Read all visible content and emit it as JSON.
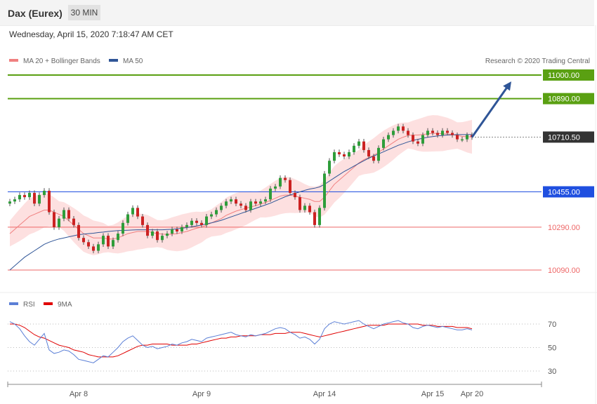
{
  "header": {
    "instrument": "Dax (Eurex)",
    "timeframe": "30 MIN",
    "timestamp": "Wednesday, April 15, 2020 7:18:47 AM CET"
  },
  "legend": {
    "main": [
      {
        "label": "MA 20 + Bollinger Bands",
        "color": "#f08080"
      },
      {
        "label": "MA 50",
        "color": "#2f5597"
      }
    ],
    "credit": "Research © 2020 Trading Central",
    "rsi": [
      {
        "label": "RSI",
        "color": "#5b7fd6"
      },
      {
        "label": "9MA",
        "color": "#e00000"
      }
    ]
  },
  "colors": {
    "resistance": "#5aa012",
    "pivot": "#1f4fe0",
    "support": "#ee6666",
    "current": "#333333",
    "arrow": "#2f5597",
    "candle_up": "#2e9d3a",
    "candle_down": "#cc2222",
    "band": "#fde0e0"
  },
  "chart_data": {
    "type": "candlestick",
    "price_range": [
      10030,
      11040
    ],
    "levels": [
      {
        "value": 11000,
        "label": "11000.00",
        "kind": "resistance"
      },
      {
        "value": 10890,
        "label": "10890.00",
        "kind": "resistance"
      },
      {
        "value": 10710.5,
        "label": "10710.50",
        "kind": "current"
      },
      {
        "value": 10455,
        "label": "10455.00",
        "kind": "pivot"
      },
      {
        "value": 10290,
        "label": "10290.00",
        "kind": "support"
      },
      {
        "value": 10090,
        "label": "10090.00",
        "kind": "support"
      }
    ],
    "x_labels": [
      "Apr 8",
      "Apr 9",
      "Apr 14",
      "Apr 15",
      "Apr 20"
    ],
    "x_label_index": [
      14,
      39,
      64,
      86,
      94
    ],
    "target": {
      "from_index": 94,
      "from_price": 10710,
      "to_index": 102,
      "to_price": 10970
    },
    "close": [
      10410,
      10420,
      10440,
      10430,
      10450,
      10400,
      10440,
      10460,
      10360,
      10290,
      10330,
      10370,
      10330,
      10300,
      10240,
      10220,
      10200,
      10180,
      10210,
      10250,
      10200,
      10230,
      10260,
      10310,
      10350,
      10380,
      10340,
      10300,
      10250,
      10270,
      10230,
      10250,
      10260,
      10280,
      10270,
      10290,
      10300,
      10320,
      10310,
      10300,
      10340,
      10350,
      10370,
      10390,
      10410,
      10420,
      10400,
      10390,
      10370,
      10410,
      10400,
      10410,
      10420,
      10470,
      10480,
      10520,
      10510,
      10450,
      10430,
      10370,
      10390,
      10360,
      10300,
      10380,
      10540,
      10600,
      10640,
      10630,
      10620,
      10640,
      10670,
      10690,
      10650,
      10620,
      10600,
      10660,
      10700,
      10720,
      10740,
      10760,
      10740,
      10720,
      10690,
      10680,
      10720,
      10740,
      10730,
      10720,
      10740,
      10730,
      10720,
      10700,
      10700,
      10720,
      10710
    ],
    "ma20": [
      10260,
      10280,
      10300,
      10320,
      10340,
      10350,
      10360,
      10370,
      10370,
      10360,
      10350,
      10340,
      10320,
      10300,
      10280,
      10260,
      10250,
      10240,
      10240,
      10240,
      10235,
      10235,
      10240,
      10250,
      10260,
      10265,
      10270,
      10270,
      10270,
      10265,
      10260,
      10258,
      10256,
      10258,
      10260,
      10265,
      10270,
      10278,
      10285,
      10290,
      10300,
      10310,
      10320,
      10330,
      10345,
      10355,
      10365,
      10372,
      10378,
      10385,
      10390,
      10398,
      10405,
      10415,
      10425,
      10435,
      10440,
      10440,
      10435,
      10430,
      10425,
      10420,
      10410,
      10410,
      10430,
      10460,
      10490,
      10510,
      10530,
      10550,
      10570,
      10590,
      10605,
      10615,
      10625,
      10640,
      10655,
      10670,
      10685,
      10700,
      10710,
      10718,
      10720,
      10720,
      10722,
      10726,
      10728,
      10728,
      10726,
      10725,
      10722,
      10718,
      10714,
      10712,
      10712
    ],
    "ma50": [
      10090,
      10110,
      10130,
      10150,
      10165,
      10180,
      10195,
      10210,
      10220,
      10228,
      10235,
      10240,
      10245,
      10250,
      10255,
      10258,
      10260,
      10262,
      10265,
      10267,
      10270,
      10272,
      10274,
      10275,
      10276,
      10277,
      10278,
      10278,
      10278,
      10278,
      10278,
      10278,
      10279,
      10280,
      10282,
      10285,
      10288,
      10292,
      10296,
      10300,
      10305,
      10310,
      10316,
      10322,
      10330,
      10338,
      10346,
      10354,
      10362,
      10370,
      10378,
      10386,
      10394,
      10402,
      10412,
      10422,
      10432,
      10440,
      10448,
      10455,
      10462,
      10468,
      10472,
      10478,
      10490,
      10505,
      10520,
      10535,
      10550,
      10562,
      10575,
      10588,
      10600,
      10612,
      10622,
      10632,
      10642,
      10652,
      10662,
      10672,
      10680,
      10688,
      10695,
      10700,
      10705,
      10710,
      10713,
      10716,
      10718,
      10720,
      10721,
      10722,
      10722,
      10722,
      10722
    ],
    "rsi": [
      72,
      70,
      66,
      60,
      55,
      52,
      57,
      62,
      48,
      45,
      46,
      48,
      47,
      44,
      40,
      39,
      38,
      37,
      40,
      43,
      42,
      46,
      50,
      55,
      58,
      60,
      56,
      52,
      50,
      51,
      49,
      50,
      51,
      53,
      52,
      54,
      55,
      57,
      56,
      55,
      58,
      59,
      60,
      61,
      62,
      63,
      61,
      60,
      59,
      61,
      60,
      61,
      62,
      64,
      66,
      67,
      66,
      63,
      61,
      58,
      59,
      57,
      53,
      57,
      66,
      70,
      72,
      71,
      70,
      71,
      72,
      73,
      70,
      68,
      66,
      68,
      70,
      71,
      72,
      73,
      71,
      70,
      67,
      66,
      68,
      69,
      68,
      67,
      68,
      67,
      66,
      65,
      65,
      66,
      65
    ],
    "rsi_ma": [
      70,
      70,
      69,
      67,
      64,
      61,
      59,
      58,
      56,
      54,
      52,
      51,
      50,
      48,
      47,
      46,
      44,
      43,
      42,
      42,
      42,
      42,
      43,
      45,
      47,
      49,
      51,
      52,
      52,
      53,
      53,
      53,
      53,
      52,
      52,
      52,
      52,
      53,
      53,
      54,
      55,
      56,
      57,
      58,
      58,
      59,
      59,
      60,
      60,
      60,
      60,
      61,
      61,
      61,
      62,
      62,
      62,
      63,
      63,
      63,
      62,
      61,
      60,
      59,
      60,
      61,
      62,
      63,
      64,
      65,
      66,
      67,
      68,
      69,
      69,
      69,
      69,
      70,
      70,
      70,
      70,
      70,
      70,
      70,
      69,
      69,
      69,
      68,
      68,
      68,
      68,
      67,
      67,
      67,
      66
    ],
    "rsi_levels": [
      70,
      50,
      30
    ],
    "rsi_range": [
      15,
      85
    ]
  }
}
